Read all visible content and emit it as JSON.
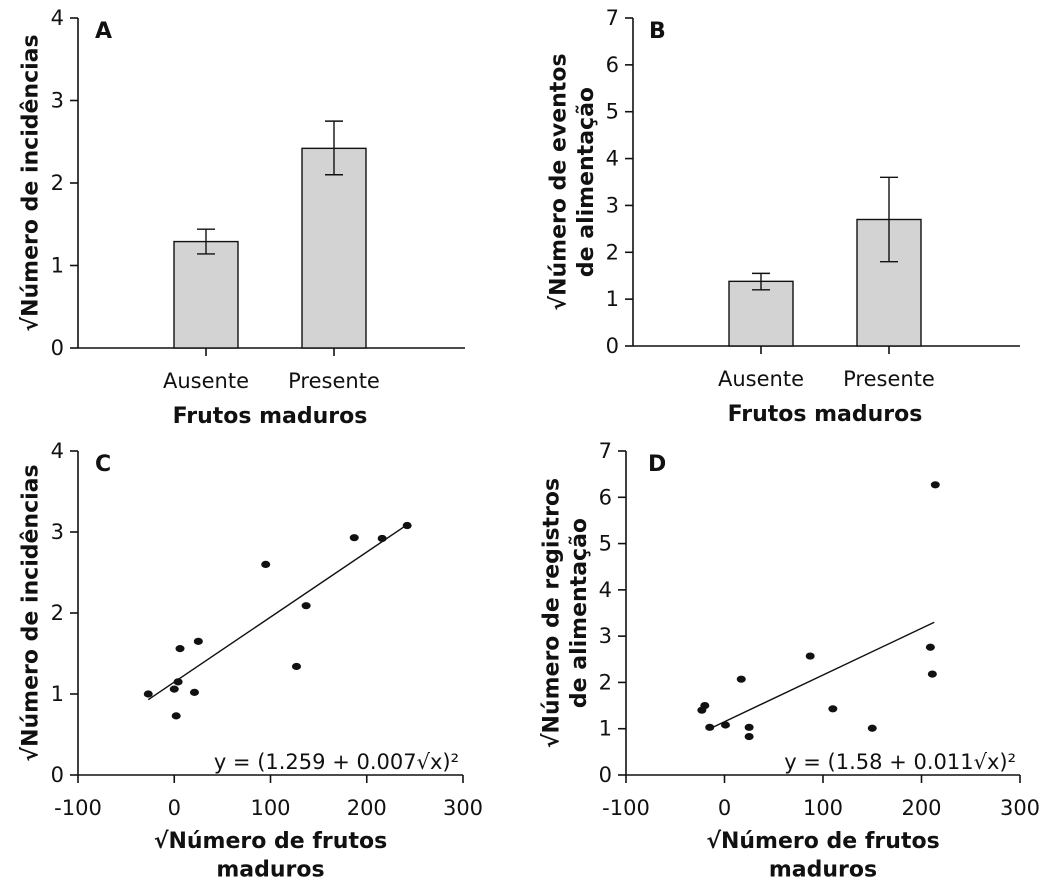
{
  "chart_data": [
    {
      "panel": "A",
      "type": "bar",
      "categories": [
        "Ausente",
        "Presente"
      ],
      "values": [
        1.29,
        2.42
      ],
      "errors": [
        [
          1.14,
          1.44
        ],
        [
          2.1,
          2.75
        ]
      ],
      "xlabel": "Frutos maduros",
      "ylabel": "√Número de incidências",
      "ylabel_lines": [
        "√Número de incidências"
      ],
      "ylim": [
        0,
        4
      ],
      "yticks": [
        "0",
        "1",
        "2",
        "3",
        "4"
      ],
      "bar_color": "#d3d3d3"
    },
    {
      "panel": "B",
      "type": "bar",
      "categories": [
        "Ausente",
        "Presente"
      ],
      "values": [
        1.38,
        2.7
      ],
      "errors": [
        [
          1.2,
          1.55
        ],
        [
          1.8,
          3.6
        ]
      ],
      "xlabel": "Frutos maduros",
      "ylabel": "√Número de eventos de alimentação",
      "ylabel_lines": [
        "√Número de eventos",
        "de alimentação"
      ],
      "ylim": [
        0,
        7
      ],
      "yticks": [
        "0",
        "1",
        "2",
        "3",
        "4",
        "5",
        "6",
        "7"
      ],
      "bar_color": "#d3d3d3"
    },
    {
      "panel": "C",
      "type": "scatter",
      "points": [
        [
          -27,
          1.0
        ],
        [
          0,
          1.06
        ],
        [
          2,
          0.73
        ],
        [
          4,
          1.15
        ],
        [
          6,
          1.56
        ],
        [
          21,
          1.02
        ],
        [
          25,
          1.65
        ],
        [
          95,
          2.6
        ],
        [
          127,
          1.34
        ],
        [
          137,
          2.09
        ],
        [
          187,
          2.93
        ],
        [
          216,
          2.92
        ],
        [
          242,
          3.08
        ]
      ],
      "fit_line": {
        "x": [
          -27,
          242
        ],
        "y": [
          0.93,
          3.09
        ]
      },
      "equation": "y = (1.259 + 0.007√x)²",
      "xlabel": "√Número de frutos maduros",
      "xlabel_lines": [
        "√Número de frutos",
        "maduros"
      ],
      "ylabel": "√Número de incidências",
      "ylabel_lines": [
        "√Número de incidências"
      ],
      "xlim": [
        -100,
        300
      ],
      "ylim": [
        0,
        4
      ],
      "xticks": [
        "-100",
        "0",
        "100",
        "200",
        "300"
      ],
      "yticks": [
        "0",
        "1",
        "2",
        "3",
        "4"
      ]
    },
    {
      "panel": "D",
      "type": "scatter",
      "points": [
        [
          -23,
          1.4
        ],
        [
          -20,
          1.5
        ],
        [
          -15,
          1.03
        ],
        [
          1,
          1.08
        ],
        [
          17,
          2.07
        ],
        [
          25,
          1.03
        ],
        [
          25,
          0.83
        ],
        [
          87,
          2.57
        ],
        [
          110,
          1.43
        ],
        [
          150,
          1.01
        ],
        [
          209,
          2.76
        ],
        [
          211,
          2.18
        ],
        [
          214,
          6.27
        ]
      ],
      "fit_line": {
        "x": [
          -15,
          213
        ],
        "y": [
          1.0,
          3.3
        ]
      },
      "equation": "y = (1.58 + 0.011√x)²",
      "xlabel": "√Número de frutos maduros",
      "xlabel_lines": [
        "√Número de frutos",
        "maduros"
      ],
      "ylabel": "√Número de registros de alimentação",
      "ylabel_lines": [
        "√Número de registros",
        "de alimentação"
      ],
      "xlim": [
        -100,
        300
      ],
      "ylim": [
        0,
        7
      ],
      "xticks": [
        "-100",
        "0",
        "100",
        "200",
        "300"
      ],
      "yticks": [
        "0",
        "1",
        "2",
        "3",
        "4",
        "5",
        "6",
        "7"
      ]
    }
  ]
}
